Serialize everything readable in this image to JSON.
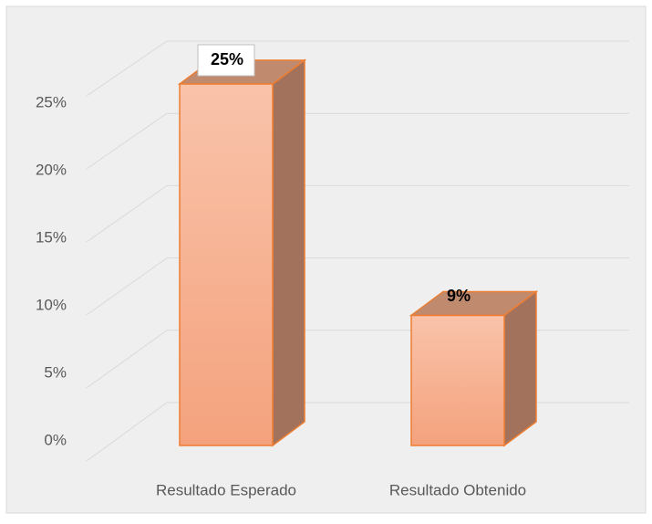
{
  "chart_data": {
    "type": "bar3d",
    "categories": [
      "Resultado Esperado",
      "Resultado Obtenido"
    ],
    "values": [
      25,
      9
    ],
    "value_labels": [
      "25%",
      "9%"
    ],
    "color": "#f4a07c",
    "ylim": [
      0,
      25
    ],
    "yticks": [
      {
        "value": 0,
        "label": "0%"
      },
      {
        "value": 5,
        "label": "5%"
      },
      {
        "value": 10,
        "label": "10%"
      },
      {
        "value": 15,
        "label": "15%"
      },
      {
        "value": 20,
        "label": "20%"
      },
      {
        "value": 25,
        "label": "25%"
      }
    ],
    "grid": true
  }
}
